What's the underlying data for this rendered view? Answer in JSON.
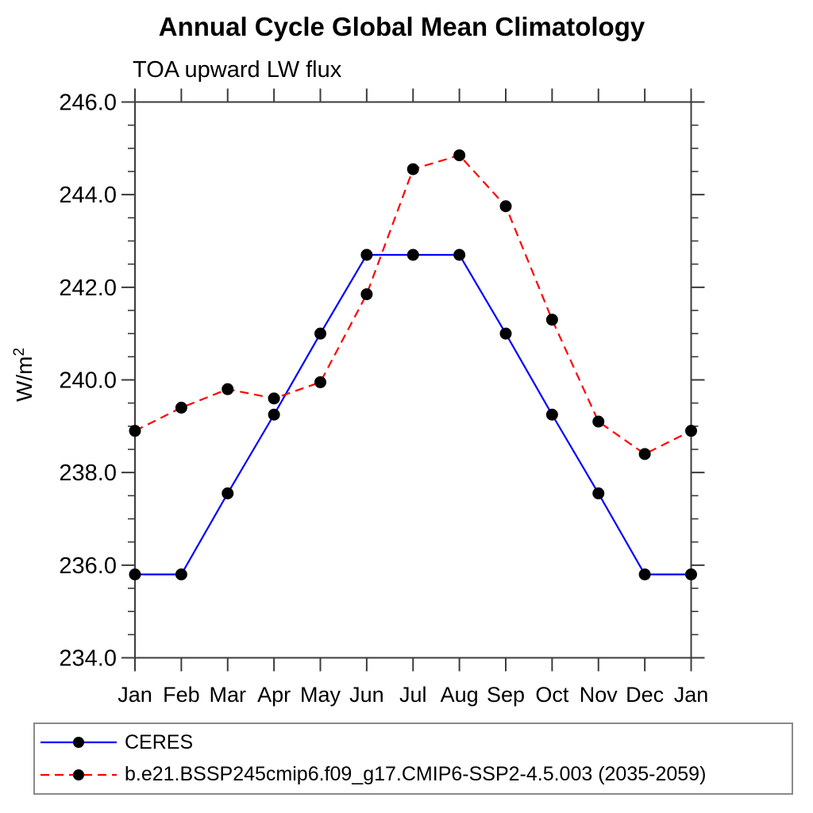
{
  "chart_data": {
    "type": "line",
    "title": "Annual Cycle Global Mean Climatology",
    "subtitle": "TOA upward LW flux",
    "ylabel": "W/m²",
    "ylabel_base": "W/m",
    "ylabel_exponent": "2",
    "categories": [
      "Jan",
      "Feb",
      "Mar",
      "Apr",
      "May",
      "Jun",
      "Jul",
      "Aug",
      "Sep",
      "Oct",
      "Nov",
      "Dec",
      "Jan"
    ],
    "ylim": [
      234.0,
      246.0
    ],
    "ytick_major_step": 2.0,
    "ytick_minor_step": 0.5,
    "ytick_labels": [
      "234.0",
      "236.0",
      "238.0",
      "240.0",
      "242.0",
      "244.0",
      "246.0"
    ],
    "grid": false,
    "legend_position": "bottom",
    "marker": "filled-circle",
    "marker_color": "#000000",
    "series": [
      {
        "name": "CERES",
        "color": "#0000ff",
        "line_style": "solid",
        "marker": "filled-circle",
        "marker_color": "#000000",
        "values": [
          235.8,
          235.8,
          237.55,
          239.25,
          241.0,
          242.7,
          242.7,
          242.7,
          241.0,
          239.25,
          237.55,
          235.8,
          235.8
        ]
      },
      {
        "name": "b.e21.BSSP245cmip6.f09_g17.CMIP6-SSP2-4.5.003 (2035-2059)",
        "color": "#ff0000",
        "line_style": "dashed",
        "marker": "filled-circle",
        "marker_color": "#000000",
        "values": [
          238.9,
          239.4,
          239.8,
          239.6,
          239.95,
          241.85,
          244.55,
          244.85,
          243.75,
          241.3,
          239.1,
          238.4,
          238.9
        ]
      }
    ]
  }
}
